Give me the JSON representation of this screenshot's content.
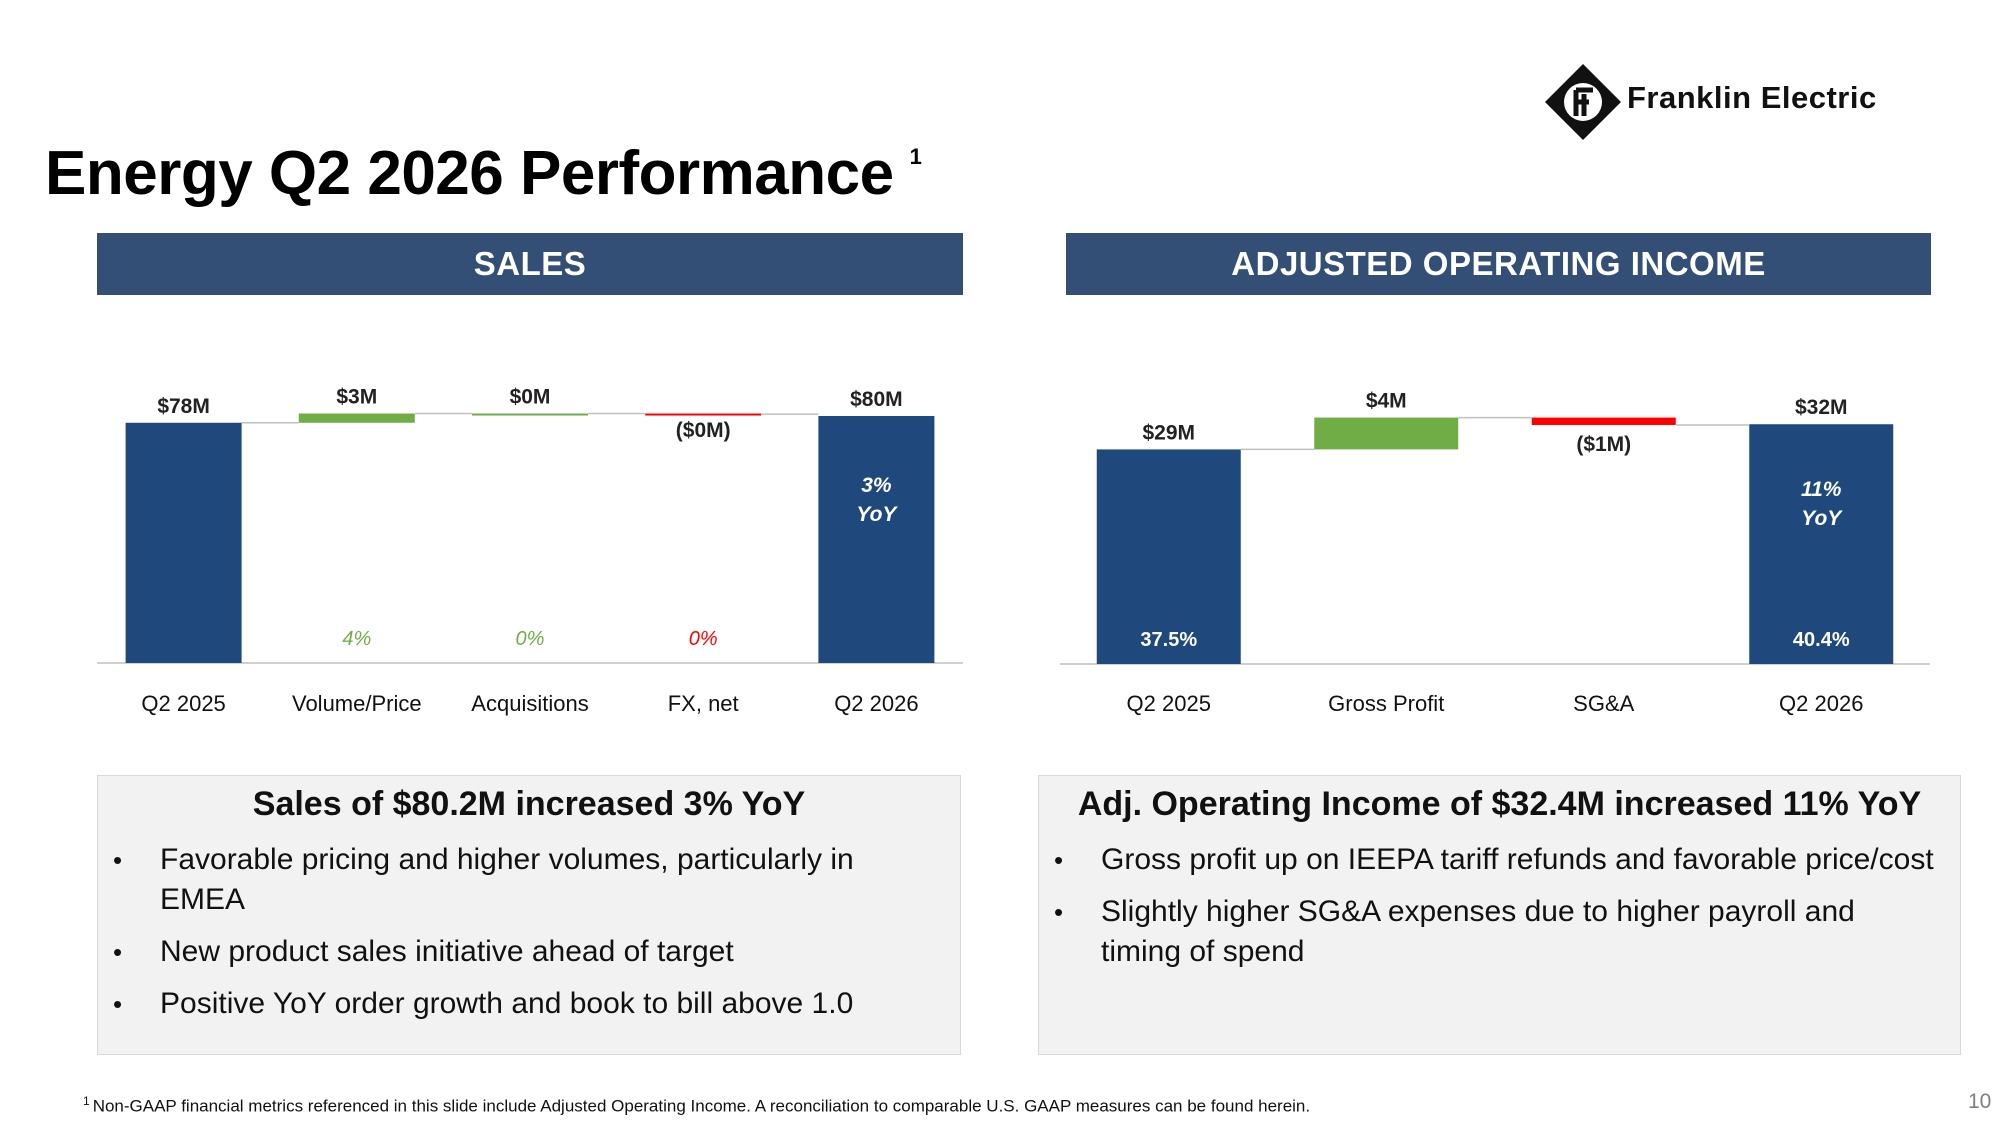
{
  "logo": {
    "name": "Franklin Electric",
    "icon": "franklin-diamond-logo-icon"
  },
  "title": {
    "text": "Energy Q2 2026 Performance",
    "superscript": "1"
  },
  "sections": {
    "sales_header": "SALES",
    "aoi_header": "ADJUSTED OPERATING INCOME"
  },
  "colors": {
    "navy": "#1f497d",
    "header": "#344f75",
    "green": "#70ad47",
    "red": "#ff0000"
  },
  "chart_data": [
    {
      "type": "waterfall",
      "name": "sales",
      "categories": [
        "Q2 2025",
        "Volume/Price",
        "Acquisitions",
        "FX, net",
        "Q2 2026"
      ],
      "values": [
        78,
        3,
        0,
        -0.2,
        80.2
      ],
      "value_labels": [
        "$78M",
        "$3M",
        "$0M",
        "($0M)",
        "$80M"
      ],
      "pct_labels": [
        "",
        "4%",
        "0%",
        "0%",
        ""
      ],
      "yoy_label": [
        "3%",
        "YoY"
      ],
      "bar_kind": [
        "total",
        "up",
        "up",
        "down",
        "total"
      ]
    },
    {
      "type": "waterfall",
      "name": "adjusted_operating_income",
      "categories": [
        "Q2 2025",
        "Gross Profit",
        "SG&A",
        "Q2 2026"
      ],
      "values": [
        29,
        4.3,
        -1,
        32.4
      ],
      "value_labels": [
        "$29M",
        "$4M",
        "($1M)",
        "$32M"
      ],
      "margin_labels": [
        "37.5%",
        "",
        "",
        "40.4%"
      ],
      "yoy_label": [
        "11%",
        "YoY"
      ],
      "bar_kind": [
        "total",
        "up",
        "down",
        "total"
      ]
    }
  ],
  "summary_sales": {
    "title": "Sales of $80.2M increased 3% YoY",
    "bullets": [
      "Favorable pricing and higher volumes, particularly in EMEA",
      "New product sales initiative ahead of target",
      "Positive YoY order growth and book to bill above 1.0"
    ]
  },
  "summary_aoi": {
    "title": "Adj. Operating Income of $32.4M increased 11% YoY",
    "bullets": [
      "Gross profit up on IEEPA tariff refunds and favorable price/cost",
      "Slightly higher SG&A expenses due to higher payroll and timing of spend"
    ]
  },
  "bullet_glyph": "•",
  "footnote": {
    "marker": "1",
    "text": "Non-GAAP financial metrics referenced in this slide include Adjusted Operating Income. A reconciliation to comparable U.S. GAAP measures can be found herein."
  },
  "page_number": "10"
}
